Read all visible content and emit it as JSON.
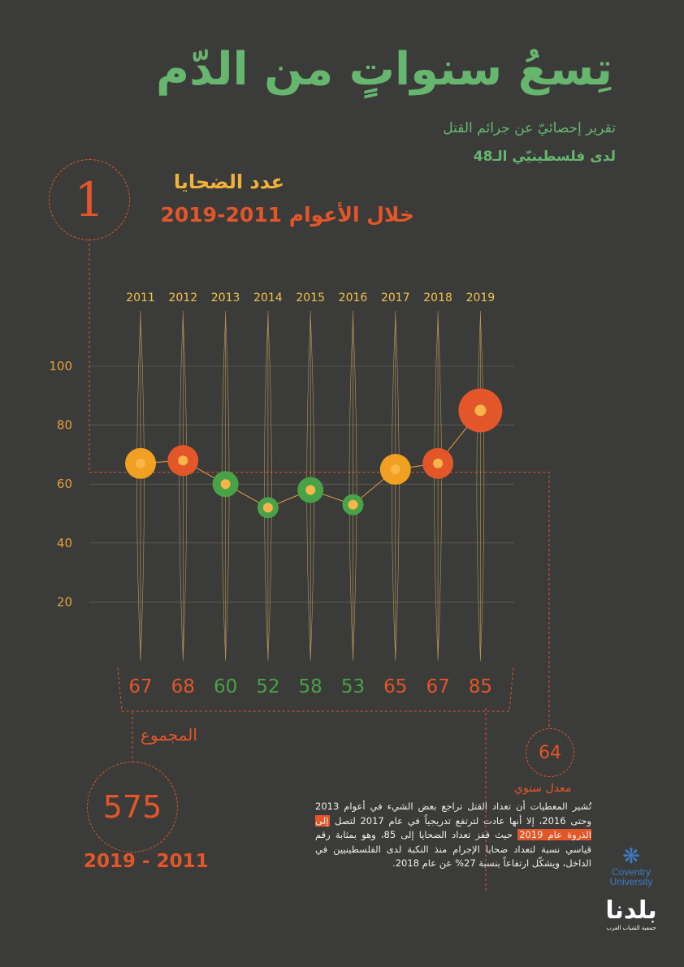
{
  "header": {
    "title": "تِسعُ سنواتٍ من الدّم",
    "subtitle_line1": "تقرير إحصائيّ عن جرائم القتل",
    "subtitle_line2": "لدى فلسطينيّي الـ48"
  },
  "section": {
    "number": "1",
    "title": "عدد الضحايا",
    "subtitle": "خلال الأعوام 2011-2019"
  },
  "colors": {
    "background": "#3b3b39",
    "orange": "#f2a021",
    "red_orange": "#e2562a",
    "green": "#48a247",
    "inner_dot": "#f7b54a",
    "line": "#e8a13a",
    "title_green": "#67b66f"
  },
  "chart_data": {
    "type": "line",
    "title": "",
    "xlabel": "",
    "ylabel": "",
    "categories": [
      "2011",
      "2012",
      "2013",
      "2014",
      "2015",
      "2016",
      "2017",
      "2018",
      "2019"
    ],
    "series": [
      {
        "values": [
          67,
          68,
          60,
          52,
          58,
          53,
          65,
          67,
          85
        ]
      }
    ],
    "value_labels": [
      "67",
      "68",
      "60",
      "52",
      "58",
      "53",
      "65",
      "67",
      "85"
    ],
    "point_colors": [
      "#f2a021",
      "#e2562a",
      "#48a247",
      "#48a247",
      "#48a247",
      "#48a247",
      "#f2a021",
      "#e2562a",
      "#e2562a"
    ],
    "label_colors": [
      "#e2562a",
      "#e2562a",
      "#48a247",
      "#48a247",
      "#48a247",
      "#48a247",
      "#e2562a",
      "#e2562a",
      "#e2562a"
    ],
    "y_ticks": [
      20,
      40,
      60,
      80,
      100
    ],
    "y_tick_labels": [
      "20",
      "40",
      "60",
      "80",
      "100"
    ],
    "ylim": [
      0,
      100
    ],
    "grid": true,
    "average_line": 64
  },
  "summary": {
    "total_label": "المجموع",
    "total_value": "575",
    "total_range": "2019 - 2011",
    "average_value": "64",
    "average_label": "معدل سنوي"
  },
  "description": {
    "part1": "تُشير المعطيات أن تعداد القتل تراجع بعض الشيء في أعوام 2013 وحتى 2016، إلا أنها عادت لترتفع تدريجياً في عام 2017 لتصل ",
    "highlight": "إلى الذروة عام 2019",
    "part2": " حيث قفز تعداد الضحايا إلى 85، وهو بمثابة رقم قياسي نسبة لتعداد ضحايا الإجرام منذ النكبة لدى الفلسطينيين في الداخل، ويشكّل ارتفاعاً بنسبة 27% عن عام 2018."
  },
  "logos": {
    "coventry": "Coventry University",
    "coventry_icon": "phoenix-icon",
    "baladna_logo": "بلدنا",
    "baladna_tagline": "جمعية الشباب العرب"
  }
}
